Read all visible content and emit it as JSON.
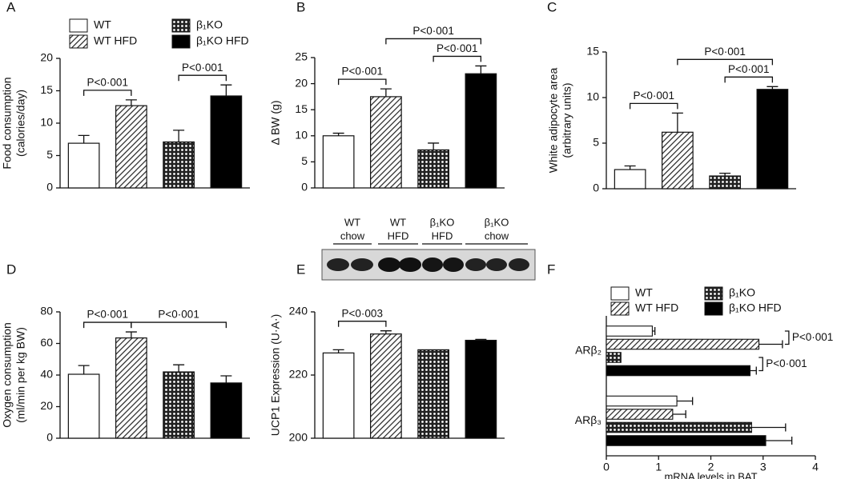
{
  "chart_data": [
    {
      "type": "bar",
      "panel": "A",
      "y_label": [
        "Food consumption",
        "(calories/day)"
      ],
      "series": [
        {
          "name": "WT",
          "pattern": "open",
          "values": [
            6.9
          ],
          "errors": [
            1.2
          ]
        },
        {
          "name": "WT HFD",
          "pattern": "hatch",
          "values": [
            12.7
          ],
          "errors": [
            0.9
          ]
        },
        {
          "name": "β₁KO",
          "pattern": "dots",
          "values": [
            7.1
          ],
          "errors": [
            1.8
          ]
        },
        {
          "name": "β₁KO HFD",
          "pattern": "solid",
          "values": [
            14.2
          ],
          "errors": [
            1.7
          ]
        }
      ],
      "ylim": [
        0,
        20
      ],
      "yticks": [
        0,
        5,
        10,
        15,
        20
      ],
      "annotations": [
        {
          "label": "P<0·001",
          "bars": [
            0,
            1
          ]
        },
        {
          "label": "P<0·001",
          "bars": [
            2,
            3
          ]
        }
      ]
    },
    {
      "type": "bar",
      "panel": "B",
      "y_label": [
        "Δ BW (g)"
      ],
      "series": [
        {
          "pattern": "open",
          "values": [
            10.0
          ],
          "errors": [
            0.5
          ]
        },
        {
          "pattern": "hatch",
          "values": [
            17.5
          ],
          "errors": [
            1.5
          ]
        },
        {
          "pattern": "dots",
          "values": [
            7.3
          ],
          "errors": [
            1.3
          ]
        },
        {
          "pattern": "solid",
          "values": [
            21.9
          ],
          "errors": [
            1.5
          ]
        }
      ],
      "ylim": [
        0,
        25
      ],
      "yticks": [
        0,
        5,
        10,
        15,
        20,
        25
      ],
      "annotations": [
        {
          "label": "P<0·001",
          "bars": [
            0,
            1
          ]
        },
        {
          "label": "P<0·001",
          "bars": [
            2,
            3
          ]
        },
        {
          "label": "P<0·001",
          "bars": [
            1,
            3
          ]
        }
      ]
    },
    {
      "type": "bar",
      "panel": "C",
      "y_label": [
        "White adipocyte area",
        "(arbitrary units)"
      ],
      "series": [
        {
          "pattern": "open",
          "values": [
            2.1
          ],
          "errors": [
            0.4
          ]
        },
        {
          "pattern": "hatch",
          "values": [
            6.2
          ],
          "errors": [
            2.1
          ]
        },
        {
          "pattern": "dots",
          "values": [
            1.4
          ],
          "errors": [
            0.3
          ]
        },
        {
          "pattern": "solid",
          "values": [
            10.9
          ],
          "errors": [
            0.3
          ]
        }
      ],
      "ylim": [
        0,
        15
      ],
      "yticks": [
        0,
        5,
        10,
        15
      ],
      "annotations": [
        {
          "label": "P<0·001",
          "bars": [
            0,
            1
          ]
        },
        {
          "label": "P<0·001",
          "bars": [
            2,
            3
          ]
        },
        {
          "label": "P<0·001",
          "bars": [
            1,
            3
          ]
        }
      ]
    },
    {
      "type": "bar",
      "panel": "D",
      "y_label": [
        "Oxygen consumption",
        "(ml/min per kg BW)"
      ],
      "series": [
        {
          "pattern": "open",
          "values": [
            40.5
          ],
          "errors": [
            5.5
          ]
        },
        {
          "pattern": "hatch",
          "values": [
            63.5
          ],
          "errors": [
            3.8
          ]
        },
        {
          "pattern": "dots",
          "values": [
            42
          ],
          "errors": [
            4.5
          ]
        },
        {
          "pattern": "solid",
          "values": [
            35
          ],
          "errors": [
            4.5
          ]
        }
      ],
      "ylim": [
        0,
        80
      ],
      "yticks": [
        0,
        20,
        40,
        60,
        80
      ],
      "annotations": [
        {
          "label": "P<0·001",
          "bars": [
            0,
            1
          ]
        },
        {
          "label": "P<0·001",
          "bars": [
            1,
            3
          ]
        }
      ]
    },
    {
      "type": "bar",
      "panel": "E",
      "y_label": [
        "UCP1 Expression (U·A·)"
      ],
      "blot_labels": [
        [
          "WT",
          "chow"
        ],
        [
          "WT",
          "HFD"
        ],
        [
          "β₁KO",
          "HFD"
        ],
        [
          "β₁KO",
          "chow"
        ]
      ],
      "series": [
        {
          "pattern": "open",
          "values": [
            227
          ],
          "errors": [
            1
          ]
        },
        {
          "pattern": "hatch",
          "values": [
            233
          ],
          "errors": [
            1
          ]
        },
        {
          "pattern": "dots",
          "values": [
            228
          ],
          "errors": [
            null
          ]
        },
        {
          "pattern": "solid",
          "values": [
            231
          ],
          "errors": [
            0.3
          ]
        }
      ],
      "ylim": [
        200,
        240
      ],
      "yticks": [
        200,
        220,
        240
      ],
      "annotations": [
        {
          "label": "P<0·003",
          "bars": [
            0,
            1
          ]
        }
      ]
    },
    {
      "type": "hbar",
      "panel": "F",
      "x_label": "mRNA levels in BAT",
      "categories": [
        "ARβ₂",
        "ARβ₃"
      ],
      "series": [
        {
          "name": "WT",
          "pattern": "open",
          "values": [
            0.88,
            1.35
          ],
          "errors": [
            0.05,
            0.3
          ]
        },
        {
          "name": "WT HFD",
          "pattern": "hatch",
          "values": [
            2.92,
            1.27
          ],
          "errors": [
            0.45,
            0.25
          ]
        },
        {
          "name": "β₁KO",
          "pattern": "dots",
          "values": [
            0.28,
            2.78
          ],
          "errors": [
            null,
            0.65
          ]
        },
        {
          "name": "β₁KO HFD",
          "pattern": "solid",
          "values": [
            2.75,
            3.05
          ],
          "errors": [
            0.12,
            0.5
          ]
        }
      ],
      "xlim": [
        0,
        4
      ],
      "xticks": [
        0,
        1,
        2,
        3,
        4
      ],
      "annotations": [
        {
          "label": "P<0·001",
          "category": 0,
          "series": [
            0,
            1
          ]
        },
        {
          "label": "P<0·001",
          "category": 0,
          "series": [
            2,
            3
          ]
        }
      ]
    }
  ]
}
